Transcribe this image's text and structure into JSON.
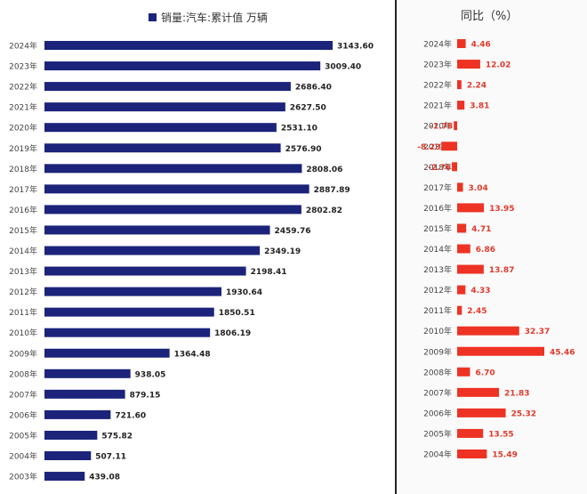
{
  "colors": {
    "left_bar": "#1b237a",
    "right_bar": "#ee3324",
    "right_label": "#e03a2b"
  },
  "chart_data": [
    {
      "type": "bar",
      "orientation": "horizontal",
      "legend": "销量:汽车:累计值 万辆",
      "legend_position": "top",
      "categories": [
        "2024年",
        "2023年",
        "2022年",
        "2021年",
        "2020年",
        "2019年",
        "2018年",
        "2017年",
        "2016年",
        "2015年",
        "2014年",
        "2013年",
        "2012年",
        "2011年",
        "2010年",
        "2009年",
        "2008年",
        "2007年",
        "2006年",
        "2005年",
        "2004年",
        "2003年"
      ],
      "values": [
        3143.6,
        3009.4,
        2686.4,
        2627.5,
        2531.1,
        2576.9,
        2808.06,
        2887.89,
        2802.82,
        2459.76,
        2349.19,
        2198.41,
        1930.64,
        1850.51,
        1806.19,
        1364.48,
        938.05,
        879.15,
        721.6,
        575.82,
        507.11,
        439.08
      ],
      "value_labels": [
        "3143.60",
        "3009.40",
        "2686.40",
        "2627.50",
        "2531.10",
        "2576.90",
        "2808.06",
        "2887.89",
        "2802.82",
        "2459.76",
        "2349.19",
        "2198.41",
        "1930.64",
        "1850.51",
        "1806.19",
        "1364.48",
        "938.05",
        "879.15",
        "721.60",
        "575.82",
        "507.11",
        "439.08"
      ],
      "xlim": [
        0,
        3300
      ],
      "grid": false
    },
    {
      "type": "bar",
      "orientation": "horizontal",
      "title": "同比（%）",
      "categories": [
        "2024年",
        "2023年",
        "2022年",
        "2021年",
        "2020年",
        "2019年",
        "2018年",
        "2017年",
        "2016年",
        "2015年",
        "2014年",
        "2013年",
        "2012年",
        "2011年",
        "2010年",
        "2009年",
        "2008年",
        "2007年",
        "2006年",
        "2005年",
        "2004年"
      ],
      "values": [
        4.46,
        12.02,
        2.24,
        3.81,
        -1.78,
        -8.23,
        -2.76,
        3.04,
        13.95,
        4.71,
        6.86,
        13.87,
        4.33,
        2.45,
        32.37,
        45.46,
        6.7,
        21.83,
        25.32,
        13.55,
        15.49
      ],
      "value_labels": [
        "4.46",
        "12.02",
        "2.24",
        "3.81",
        "-1.78",
        "-8.23",
        "-2.76",
        "3.04",
        "13.95",
        "4.71",
        "6.86",
        "13.87",
        "4.33",
        "2.45",
        "32.37",
        "45.46",
        "6.70",
        "21.83",
        "25.32",
        "13.55",
        "15.49"
      ],
      "grid": false
    }
  ]
}
